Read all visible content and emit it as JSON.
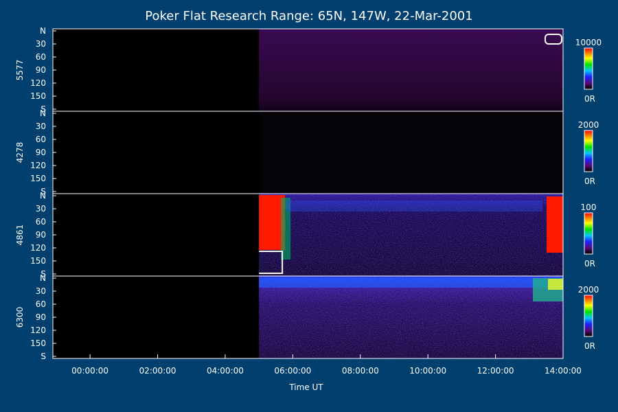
{
  "chart_data": {
    "type": "heatmap",
    "title": "Poker Flat Research Range: 65N, 147W, 22-Mar-2001",
    "xlabel": "Time UT",
    "x_tick_labels": [
      "00:00:00",
      "02:00:00",
      "04:00:00",
      "06:00:00",
      "08:00:00",
      "10:00:00",
      "12:00:00",
      "14:00:00"
    ],
    "x_tick_hours": [
      0,
      2,
      4,
      6,
      8,
      10,
      12,
      14
    ],
    "x_range_hours": [
      -1.1,
      14.0
    ],
    "y_tick_labels": [
      "N",
      "30",
      "60",
      "90",
      "120",
      "150",
      "S"
    ],
    "y_tick_values": [
      0,
      30,
      60,
      90,
      120,
      150,
      180
    ],
    "y_range": [
      0,
      180
    ],
    "data_start_hour": 5.0,
    "panels": [
      {
        "name": "5577",
        "cbar_max": "10000",
        "cbar_min": "0R"
      },
      {
        "name": "4278",
        "cbar_max": "2000",
        "cbar_min": "0R"
      },
      {
        "name": "4861",
        "cbar_max": "100",
        "cbar_min": "0R"
      },
      {
        "name": "6300",
        "cbar_max": "2000",
        "cbar_min": "0R"
      }
    ]
  }
}
